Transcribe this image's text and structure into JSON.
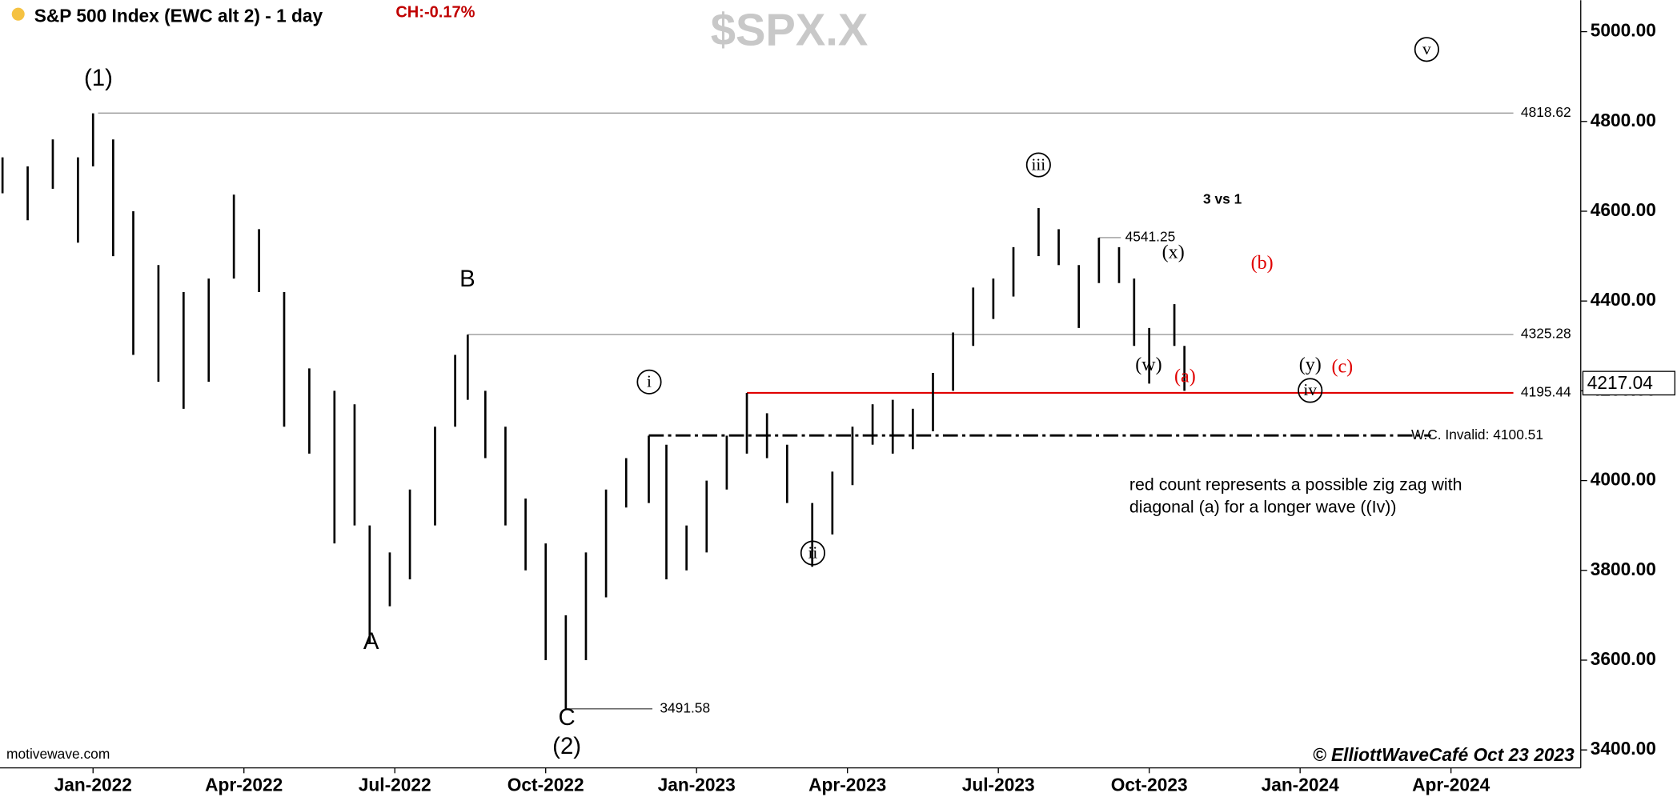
{
  "chart_data": {
    "type": "stock",
    "title": "S&P 500 Index (EWC alt 2) - 1 day",
    "change": "CH:-0.17%",
    "symbol": "$SPX.X",
    "source": "motivewave.com",
    "credit": "© ElliottWaveCafé Oct 23 2023",
    "color": "#000000",
    "xlim": [
      -1.85,
      29.58
    ],
    "ylim": [
      3360,
      5070
    ],
    "xticks": [
      {
        "value": 0,
        "label": "Jan-2022"
      },
      {
        "value": 3,
        "label": "Apr-2022"
      },
      {
        "value": 6,
        "label": "Jul-2022"
      },
      {
        "value": 9,
        "label": "Oct-2022"
      },
      {
        "value": 12,
        "label": "Jan-2023"
      },
      {
        "value": 15,
        "label": "Apr-2023"
      },
      {
        "value": 18,
        "label": "Jul-2023"
      },
      {
        "value": 21,
        "label": "Oct-2023"
      },
      {
        "value": 24,
        "label": "Jan-2024"
      },
      {
        "value": 27,
        "label": "Apr-2024"
      }
    ],
    "yticks": [
      {
        "value": 3400,
        "label": "3400.00"
      },
      {
        "value": 3600,
        "label": "3600.00"
      },
      {
        "value": 3800,
        "label": "3800.00"
      },
      {
        "value": 4000,
        "label": "4000.00"
      },
      {
        "value": 4200,
        "label": "4200.00"
      },
      {
        "value": 4400,
        "label": "4400.00"
      },
      {
        "value": 4600,
        "label": "4600.00"
      },
      {
        "value": 4800,
        "label": "4800.00"
      },
      {
        "value": 5000,
        "label": "5000.00"
      }
    ],
    "bars": [
      {
        "x": -1.8,
        "high": 4720,
        "low": 4640
      },
      {
        "x": -1.3,
        "high": 4700,
        "low": 4580
      },
      {
        "x": -0.8,
        "high": 4760,
        "low": 4650
      },
      {
        "x": -0.3,
        "high": 4720,
        "low": 4530
      },
      {
        "x": 0,
        "high": 4818,
        "low": 4700
      },
      {
        "x": 0.4,
        "high": 4760,
        "low": 4500
      },
      {
        "x": 0.8,
        "high": 4600,
        "low": 4280
      },
      {
        "x": 1.3,
        "high": 4480,
        "low": 4220
      },
      {
        "x": 1.8,
        "high": 4420,
        "low": 4160
      },
      {
        "x": 2.3,
        "high": 4450,
        "low": 4220
      },
      {
        "x": 2.8,
        "high": 4637,
        "low": 4450
      },
      {
        "x": 3.3,
        "high": 4560,
        "low": 4420
      },
      {
        "x": 3.8,
        "high": 4420,
        "low": 4120
      },
      {
        "x": 4.3,
        "high": 4250,
        "low": 4060
      },
      {
        "x": 4.8,
        "high": 4200,
        "low": 3860
      },
      {
        "x": 5.2,
        "high": 4170,
        "low": 3900
      },
      {
        "x": 5.5,
        "high": 3900,
        "low": 3636
      },
      {
        "x": 5.9,
        "high": 3840,
        "low": 3720
      },
      {
        "x": 6.3,
        "high": 3980,
        "low": 3780
      },
      {
        "x": 6.8,
        "high": 4120,
        "low": 3900
      },
      {
        "x": 7.2,
        "high": 4280,
        "low": 4120
      },
      {
        "x": 7.45,
        "high": 4325,
        "low": 4180
      },
      {
        "x": 7.8,
        "high": 4200,
        "low": 4050
      },
      {
        "x": 8.2,
        "high": 4120,
        "low": 3900
      },
      {
        "x": 8.6,
        "high": 3960,
        "low": 3800
      },
      {
        "x": 9.0,
        "high": 3860,
        "low": 3600
      },
      {
        "x": 9.4,
        "high": 3700,
        "low": 3491
      },
      {
        "x": 9.8,
        "high": 3840,
        "low": 3600
      },
      {
        "x": 10.2,
        "high": 3980,
        "low": 3740
      },
      {
        "x": 10.6,
        "high": 4050,
        "low": 3940
      },
      {
        "x": 11.05,
        "high": 4100,
        "low": 3950
      },
      {
        "x": 11.4,
        "high": 4080,
        "low": 3780
      },
      {
        "x": 11.8,
        "high": 3900,
        "low": 3800
      },
      {
        "x": 12.2,
        "high": 4000,
        "low": 3840
      },
      {
        "x": 12.6,
        "high": 4100,
        "low": 3980
      },
      {
        "x": 13.0,
        "high": 4195,
        "low": 4060
      },
      {
        "x": 13.4,
        "high": 4150,
        "low": 4050
      },
      {
        "x": 13.8,
        "high": 4080,
        "low": 3950
      },
      {
        "x": 14.3,
        "high": 3950,
        "low": 3808
      },
      {
        "x": 14.7,
        "high": 4020,
        "low": 3880
      },
      {
        "x": 15.1,
        "high": 4120,
        "low": 3990
      },
      {
        "x": 15.5,
        "high": 4170,
        "low": 4080
      },
      {
        "x": 15.9,
        "high": 4180,
        "low": 4060
      },
      {
        "x": 16.3,
        "high": 4160,
        "low": 4070
      },
      {
        "x": 16.7,
        "high": 4240,
        "low": 4110
      },
      {
        "x": 17.1,
        "high": 4330,
        "low": 4200
      },
      {
        "x": 17.5,
        "high": 4430,
        "low": 4300
      },
      {
        "x": 17.9,
        "high": 4450,
        "low": 4360
      },
      {
        "x": 18.3,
        "high": 4520,
        "low": 4410
      },
      {
        "x": 18.8,
        "high": 4607,
        "low": 4500
      },
      {
        "x": 19.2,
        "high": 4560,
        "low": 4480
      },
      {
        "x": 19.6,
        "high": 4480,
        "low": 4340
      },
      {
        "x": 20.0,
        "high": 4541,
        "low": 4440
      },
      {
        "x": 20.4,
        "high": 4520,
        "low": 4440
      },
      {
        "x": 20.7,
        "high": 4450,
        "low": 4300
      },
      {
        "x": 21.0,
        "high": 4340,
        "low": 4216
      },
      {
        "x": 21.5,
        "high": 4393,
        "low": 4300
      },
      {
        "x": 21.7,
        "high": 4300,
        "low": 4200
      }
    ],
    "levels": [
      {
        "value": 4818.62,
        "label": "4818.62"
      },
      {
        "value": 4325.28,
        "label": "4325.28"
      },
      {
        "value": 4195.44,
        "label": "4195.44"
      },
      {
        "value": 4100.51,
        "label": "W.C. Invalid: 4100.51"
      },
      {
        "value": 4541.25,
        "label": "4541.25"
      },
      {
        "value": 3491.58,
        "label": "3491.58"
      }
    ],
    "last_price": 4217.04,
    "wave_labels": [
      "(1)",
      "A",
      "B",
      "C",
      "(2)",
      "i",
      "ii",
      "iii",
      "(w)",
      "(x)",
      "(y)",
      "iv",
      "v",
      "(a)",
      "(b)",
      "(c)",
      "3 vs 1"
    ],
    "note": [
      "red count represents a possible zig zag with",
      "diagonal (a) for a longer wave ((Iv))"
    ]
  }
}
